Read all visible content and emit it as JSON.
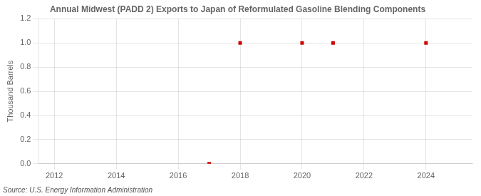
{
  "chart_data": {
    "type": "scatter",
    "title": "Annual Midwest (PADD 2) Exports to Japan of Reformulated Gasoline Blending Components",
    "y_label": "Thousand Barrels",
    "annotations": [
      "Source: U.S. Energy Information Administration"
    ],
    "x": [
      2017,
      2018,
      2020,
      2021,
      2024
    ],
    "values": [
      0.0,
      1.0,
      1.0,
      1.0,
      1.0
    ],
    "color": "#cc0000",
    "marker": "square",
    "xlim": [
      2011.5,
      2025.5
    ],
    "ylim": [
      0.0,
      1.2
    ],
    "xticks": [
      2012,
      2014,
      2016,
      2018,
      2020,
      2022,
      2024
    ],
    "yticks": [
      {
        "value": 0.0,
        "label": "0.0"
      },
      0.2,
      0.4,
      0.6,
      0.8,
      {
        "value": 1.0,
        "label": "1.0"
      },
      1.2
    ],
    "grid": true
  }
}
